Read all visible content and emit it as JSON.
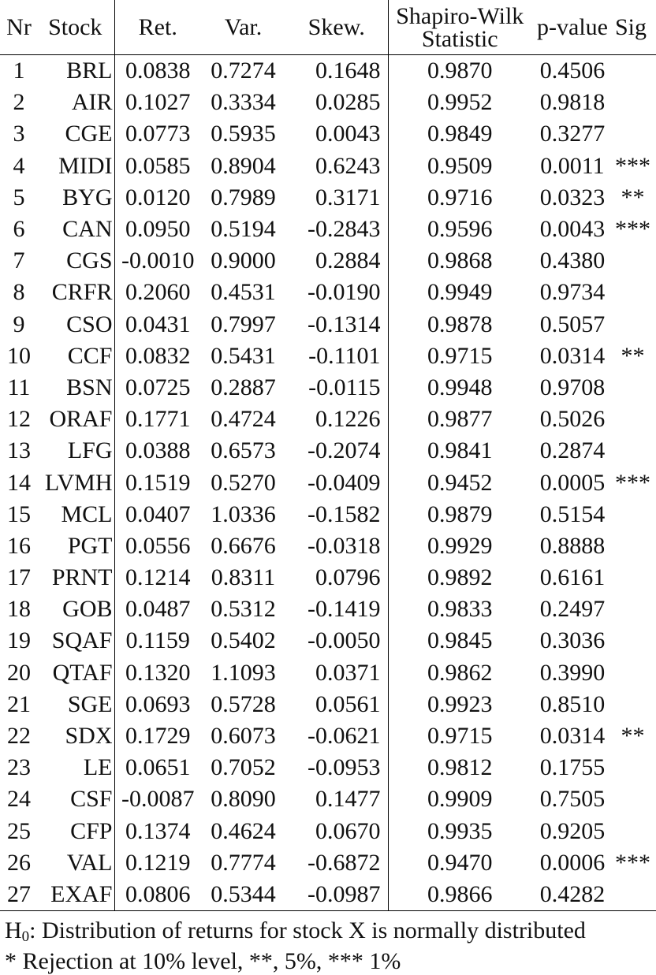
{
  "table": {
    "headers": {
      "nr": "Nr",
      "stock": "Stock",
      "ret": "Ret.",
      "var": "Var.",
      "skew": "Skew.",
      "sw_line1": "Shapiro-Wilk",
      "sw_line2": "Statistic",
      "pvalue": "p-value",
      "sig": "Sig"
    },
    "rows": [
      {
        "nr": "1",
        "stock": "BRL",
        "ret": "0.0838",
        "var": "0.7274",
        "skew": "0.1648",
        "sw": "0.9870",
        "p": "0.4506",
        "sig": ""
      },
      {
        "nr": "2",
        "stock": "AIR",
        "ret": "0.1027",
        "var": "0.3334",
        "skew": "0.0285",
        "sw": "0.9952",
        "p": "0.9818",
        "sig": ""
      },
      {
        "nr": "3",
        "stock": "CGE",
        "ret": "0.0773",
        "var": "0.5935",
        "skew": "0.0043",
        "sw": "0.9849",
        "p": "0.3277",
        "sig": ""
      },
      {
        "nr": "4",
        "stock": "MIDI",
        "ret": "0.0585",
        "var": "0.8904",
        "skew": "0.6243",
        "sw": "0.9509",
        "p": "0.0011",
        "sig": "***"
      },
      {
        "nr": "5",
        "stock": "BYG",
        "ret": "0.0120",
        "var": "0.7989",
        "skew": "0.3171",
        "sw": "0.9716",
        "p": "0.0323",
        "sig": " **"
      },
      {
        "nr": "6",
        "stock": "CAN",
        "ret": "0.0950",
        "var": "0.5194",
        "skew": "-0.2843",
        "sw": "0.9596",
        "p": "0.0043",
        "sig": "***"
      },
      {
        "nr": "7",
        "stock": "CGS",
        "ret": "-0.0010",
        "var": "0.9000",
        "skew": "0.2884",
        "sw": "0.9868",
        "p": "0.4380",
        "sig": ""
      },
      {
        "nr": "8",
        "stock": "CRFR",
        "ret": "0.2060",
        "var": "0.4531",
        "skew": "-0.0190",
        "sw": "0.9949",
        "p": "0.9734",
        "sig": ""
      },
      {
        "nr": "9",
        "stock": "CSO",
        "ret": "0.0431",
        "var": "0.7997",
        "skew": "-0.1314",
        "sw": "0.9878",
        "p": "0.5057",
        "sig": ""
      },
      {
        "nr": "10",
        "stock": "CCF",
        "ret": "0.0832",
        "var": "0.5431",
        "skew": "-0.1101",
        "sw": "0.9715",
        "p": "0.0314",
        "sig": " **"
      },
      {
        "nr": "11",
        "stock": "BSN",
        "ret": "0.0725",
        "var": "0.2887",
        "skew": "-0.0115",
        "sw": "0.9948",
        "p": "0.9708",
        "sig": ""
      },
      {
        "nr": "12",
        "stock": "ORAF",
        "ret": "0.1771",
        "var": "0.4724",
        "skew": "0.1226",
        "sw": "0.9877",
        "p": "0.5026",
        "sig": ""
      },
      {
        "nr": "13",
        "stock": "LFG",
        "ret": "0.0388",
        "var": "0.6573",
        "skew": "-0.2074",
        "sw": "0.9841",
        "p": "0.2874",
        "sig": ""
      },
      {
        "nr": "14",
        "stock": "LVMH",
        "ret": "0.1519",
        "var": "0.5270",
        "skew": "-0.0409",
        "sw": "0.9452",
        "p": "0.0005",
        "sig": "***"
      },
      {
        "nr": "15",
        "stock": "MCL",
        "ret": "0.0407",
        "var": "1.0336",
        "skew": "-0.1582",
        "sw": "0.9879",
        "p": "0.5154",
        "sig": ""
      },
      {
        "nr": "16",
        "stock": "PGT",
        "ret": "0.0556",
        "var": "0.6676",
        "skew": "-0.0318",
        "sw": "0.9929",
        "p": "0.8888",
        "sig": ""
      },
      {
        "nr": "17",
        "stock": "PRNT",
        "ret": "0.1214",
        "var": "0.8311",
        "skew": "0.0796",
        "sw": "0.9892",
        "p": "0.6161",
        "sig": ""
      },
      {
        "nr": "18",
        "stock": "GOB",
        "ret": "0.0487",
        "var": "0.5312",
        "skew": "-0.1419",
        "sw": "0.9833",
        "p": "0.2497",
        "sig": ""
      },
      {
        "nr": "19",
        "stock": "SQAF",
        "ret": "0.1159",
        "var": "0.5402",
        "skew": "-0.0050",
        "sw": "0.9845",
        "p": "0.3036",
        "sig": ""
      },
      {
        "nr": "20",
        "stock": "QTAF",
        "ret": "0.1320",
        "var": "1.1093",
        "skew": "0.0371",
        "sw": "0.9862",
        "p": "0.3990",
        "sig": ""
      },
      {
        "nr": "21",
        "stock": "SGE",
        "ret": "0.0693",
        "var": "0.5728",
        "skew": "0.0561",
        "sw": "0.9923",
        "p": "0.8510",
        "sig": ""
      },
      {
        "nr": "22",
        "stock": "SDX",
        "ret": "0.1729",
        "var": "0.6073",
        "skew": "-0.0621",
        "sw": "0.9715",
        "p": "0.0314",
        "sig": " **"
      },
      {
        "nr": "23",
        "stock": "LE",
        "ret": "0.0651",
        "var": "0.7052",
        "skew": "-0.0953",
        "sw": "0.9812",
        "p": "0.1755",
        "sig": ""
      },
      {
        "nr": "24",
        "stock": "CSF",
        "ret": "-0.0087",
        "var": "0.8090",
        "skew": "0.1477",
        "sw": "0.9909",
        "p": "0.7505",
        "sig": ""
      },
      {
        "nr": "25",
        "stock": "CFP",
        "ret": "0.1374",
        "var": "0.4624",
        "skew": "0.0670",
        "sw": "0.9935",
        "p": "0.9205",
        "sig": ""
      },
      {
        "nr": "26",
        "stock": "VAL",
        "ret": "0.1219",
        "var": "0.7774",
        "skew": "-0.6872",
        "sw": "0.9470",
        "p": "0.0006",
        "sig": "***"
      },
      {
        "nr": "27",
        "stock": "EXAF",
        "ret": "0.0806",
        "var": "0.5344",
        "skew": "-0.0987",
        "sw": "0.9866",
        "p": "0.4282",
        "sig": ""
      }
    ]
  },
  "notes": {
    "h0_symbol": "H",
    "h0_sub": "0",
    "h0_text": ": Distribution of returns for stock X is normally distributed",
    "rejection": "* Rejection at 10% level, **, 5%, *** 1%"
  }
}
